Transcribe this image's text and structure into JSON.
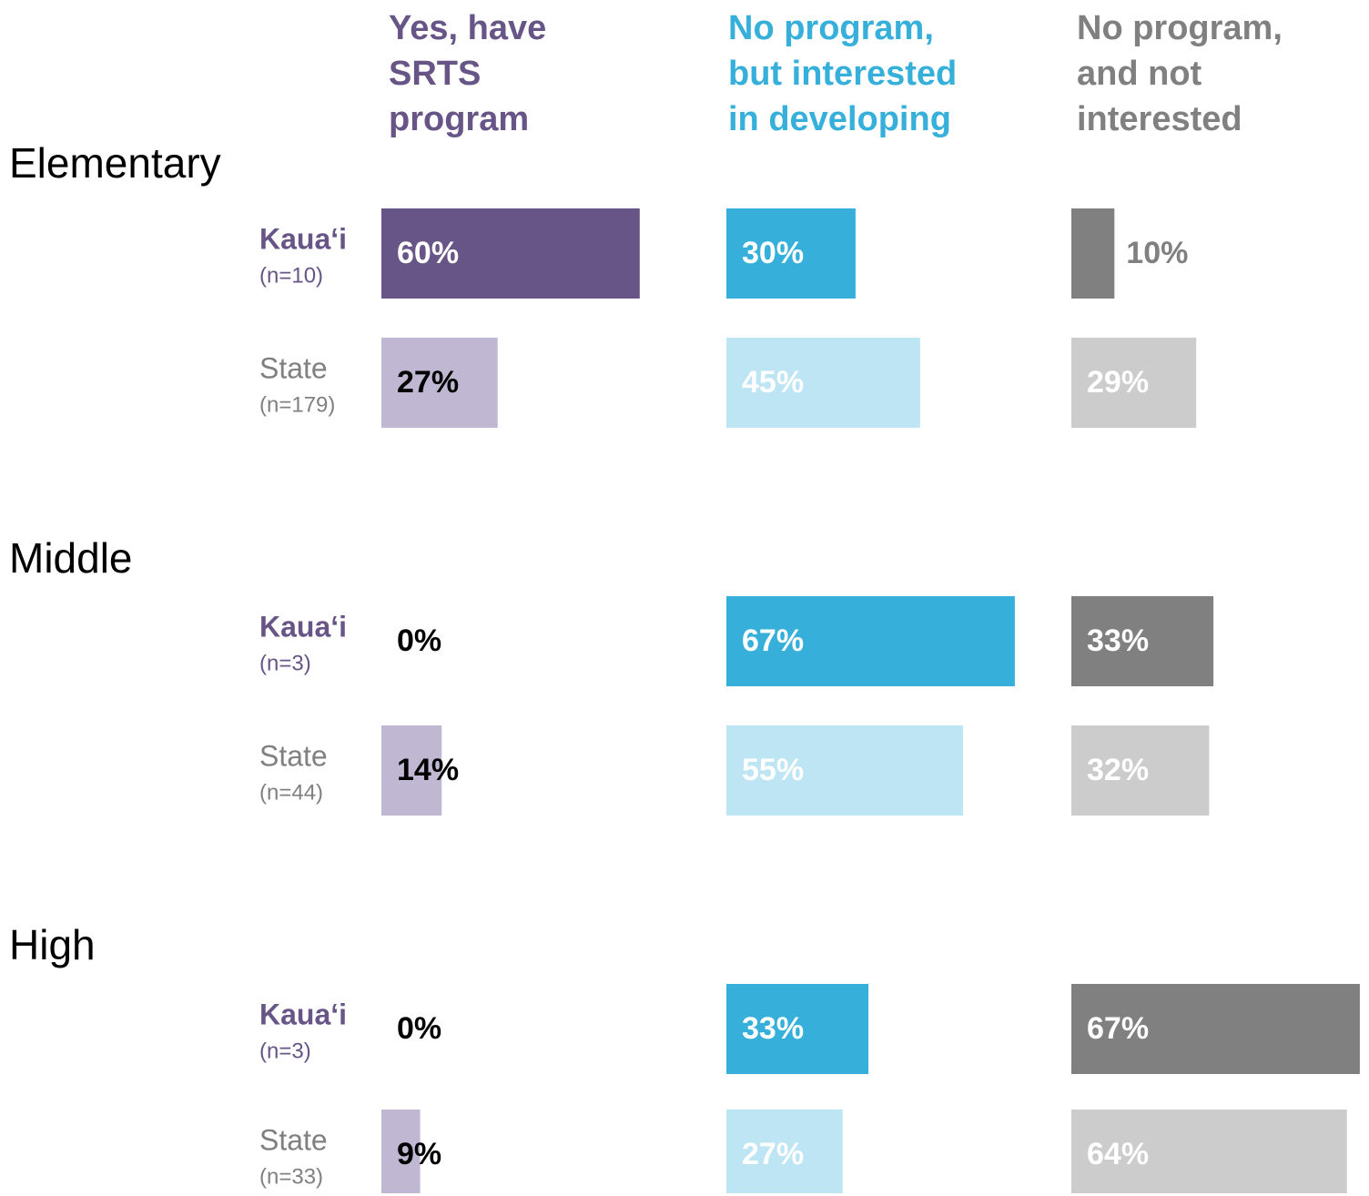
{
  "chart_data": {
    "type": "bar",
    "columns": [
      {
        "name": [
          "Yes, have",
          "SRTS",
          "program"
        ],
        "color": "#675587",
        "light_color": "#c0b8d3"
      },
      {
        "name": [
          "No program,",
          "but interested",
          "in developing"
        ],
        "color": "#36b0da",
        "light_color": "#bde5f3"
      },
      {
        "name": [
          "No program,",
          "and not",
          "interested"
        ],
        "color": "#808080",
        "light_color": "#cccccc"
      }
    ],
    "xlim": [
      0,
      100
    ],
    "groups": [
      {
        "name": "Elementary",
        "rows": [
          {
            "label": "Kaua‘i",
            "n": "(n=10)",
            "values": [
              60,
              30,
              10
            ],
            "value_labels": [
              "60%",
              "30%",
              "10%"
            ]
          },
          {
            "label": "State",
            "n": "(n=179)",
            "values": [
              27,
              45,
              29
            ],
            "value_labels": [
              "27%",
              "45%",
              "29%"
            ]
          }
        ]
      },
      {
        "name": "Middle",
        "rows": [
          {
            "label": "Kaua‘i",
            "n": "(n=3)",
            "values": [
              0,
              67,
              33
            ],
            "value_labels": [
              "0%",
              "67%",
              "33%"
            ]
          },
          {
            "label": "State",
            "n": "(n=44)",
            "values": [
              14,
              55,
              32
            ],
            "value_labels": [
              "14%",
              "55%",
              "32%"
            ]
          }
        ]
      },
      {
        "name": "High",
        "rows": [
          {
            "label": "Kaua‘i",
            "n": "(n=3)",
            "values": [
              0,
              33,
              67
            ],
            "value_labels": [
              "0%",
              "33%",
              "67%"
            ]
          },
          {
            "label": "State",
            "n": "(n=33)",
            "values": [
              9,
              27,
              64
            ],
            "value_labels": [
              "9%",
              "27%",
              "64%"
            ]
          }
        ]
      }
    ]
  }
}
